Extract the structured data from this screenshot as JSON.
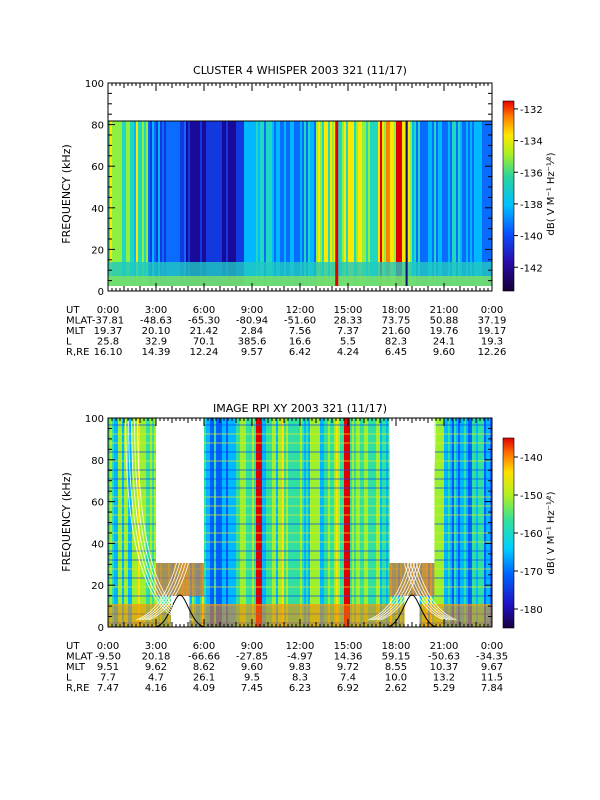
{
  "chart_data": [
    {
      "type": "heatmap",
      "title": "CLUSTER 4 WHISPER 2003 321 (11/17)",
      "ylabel": "FREQUENCY (kHz)",
      "ylim": [
        0,
        100
      ],
      "yticks": [
        "0",
        "20",
        "40",
        "60",
        "80",
        "100"
      ],
      "xlim_hours": [
        0,
        24
      ],
      "data_top_khz": 80,
      "colorbar": {
        "label": "dB( V M⁻¹ Hz⁻¹⁄²)",
        "range": [
          -143.5,
          -131.5
        ],
        "ticks": [
          "-132",
          "-134",
          "-136",
          "-138",
          "-140",
          "-142"
        ],
        "values": [
          -132,
          -134,
          -136,
          -138,
          -140,
          -142
        ]
      },
      "ephemeris": {
        "labels": [
          "UT",
          "MLAT",
          "MLT",
          "L",
          "R,RE"
        ],
        "rows": [
          [
            "0:00",
            "3:00",
            "6:00",
            "9:00",
            "12:00",
            "15:00",
            "18:00",
            "21:00",
            "0:00"
          ],
          [
            "-37.81",
            "-48.63",
            "-65.30",
            "-80.94",
            "-51.60",
            "28.33",
            "73.75",
            "50.88",
            "37.19"
          ],
          [
            "19.37",
            "20.10",
            "21.42",
            "2.84",
            "7.56",
            "7.37",
            "21.60",
            "19.76",
            "19.17"
          ],
          [
            "25.8",
            "32.9",
            "70.1",
            "385.6",
            "16.6",
            "5.5",
            "82.3",
            "24.1",
            "19.3"
          ],
          [
            "16.10",
            "14.39",
            "12.24",
            "9.57",
            "6.42",
            "4.24",
            "6.45",
            "9.60",
            "12.26"
          ]
        ]
      }
    },
    {
      "type": "heatmap",
      "title": "IMAGE RPI XY 2003 321 (11/17)",
      "ylabel": "FREQUENCY (kHz)",
      "ylim": [
        0,
        100
      ],
      "yticks": [
        "0",
        "20",
        "40",
        "60",
        "80",
        "100"
      ],
      "xlim_hours": [
        0,
        24
      ],
      "data_gaps_hours": [
        [
          3.0,
          6.0
        ],
        [
          17.6,
          20.4
        ]
      ],
      "colorbar": {
        "label": "dB( V M⁻¹ Hz⁻¹⁄²)",
        "range": [
          -185,
          -135
        ],
        "ticks": [
          "-140",
          "-150",
          "-160",
          "-170",
          "-180"
        ],
        "values": [
          -140,
          -150,
          -160,
          -170,
          -180
        ]
      },
      "ephemeris": {
        "labels": [
          "UT",
          "MLAT",
          "MLT",
          "L",
          "R,RE"
        ],
        "rows": [
          [
            "0:00",
            "3:00",
            "6:00",
            "9:00",
            "12:00",
            "15:00",
            "18:00",
            "21:00",
            "0:00"
          ],
          [
            "-9.50",
            "20.18",
            "-66.66",
            "-27.85",
            "-4.97",
            "14.36",
            "59.15",
            "-50.63",
            "-34.35"
          ],
          [
            "9.51",
            "9.62",
            "8.62",
            "9.60",
            "9.83",
            "9.72",
            "8.55",
            "10.37",
            "9.67"
          ],
          [
            "7.7",
            "4.7",
            "26.1",
            "9.5",
            "8.3",
            "7.4",
            "10.0",
            "13.2",
            "11.5"
          ],
          [
            "7.47",
            "4.16",
            "4.09",
            "7.45",
            "6.23",
            "6.92",
            "2.62",
            "5.29",
            "7.84"
          ]
        ]
      }
    }
  ]
}
